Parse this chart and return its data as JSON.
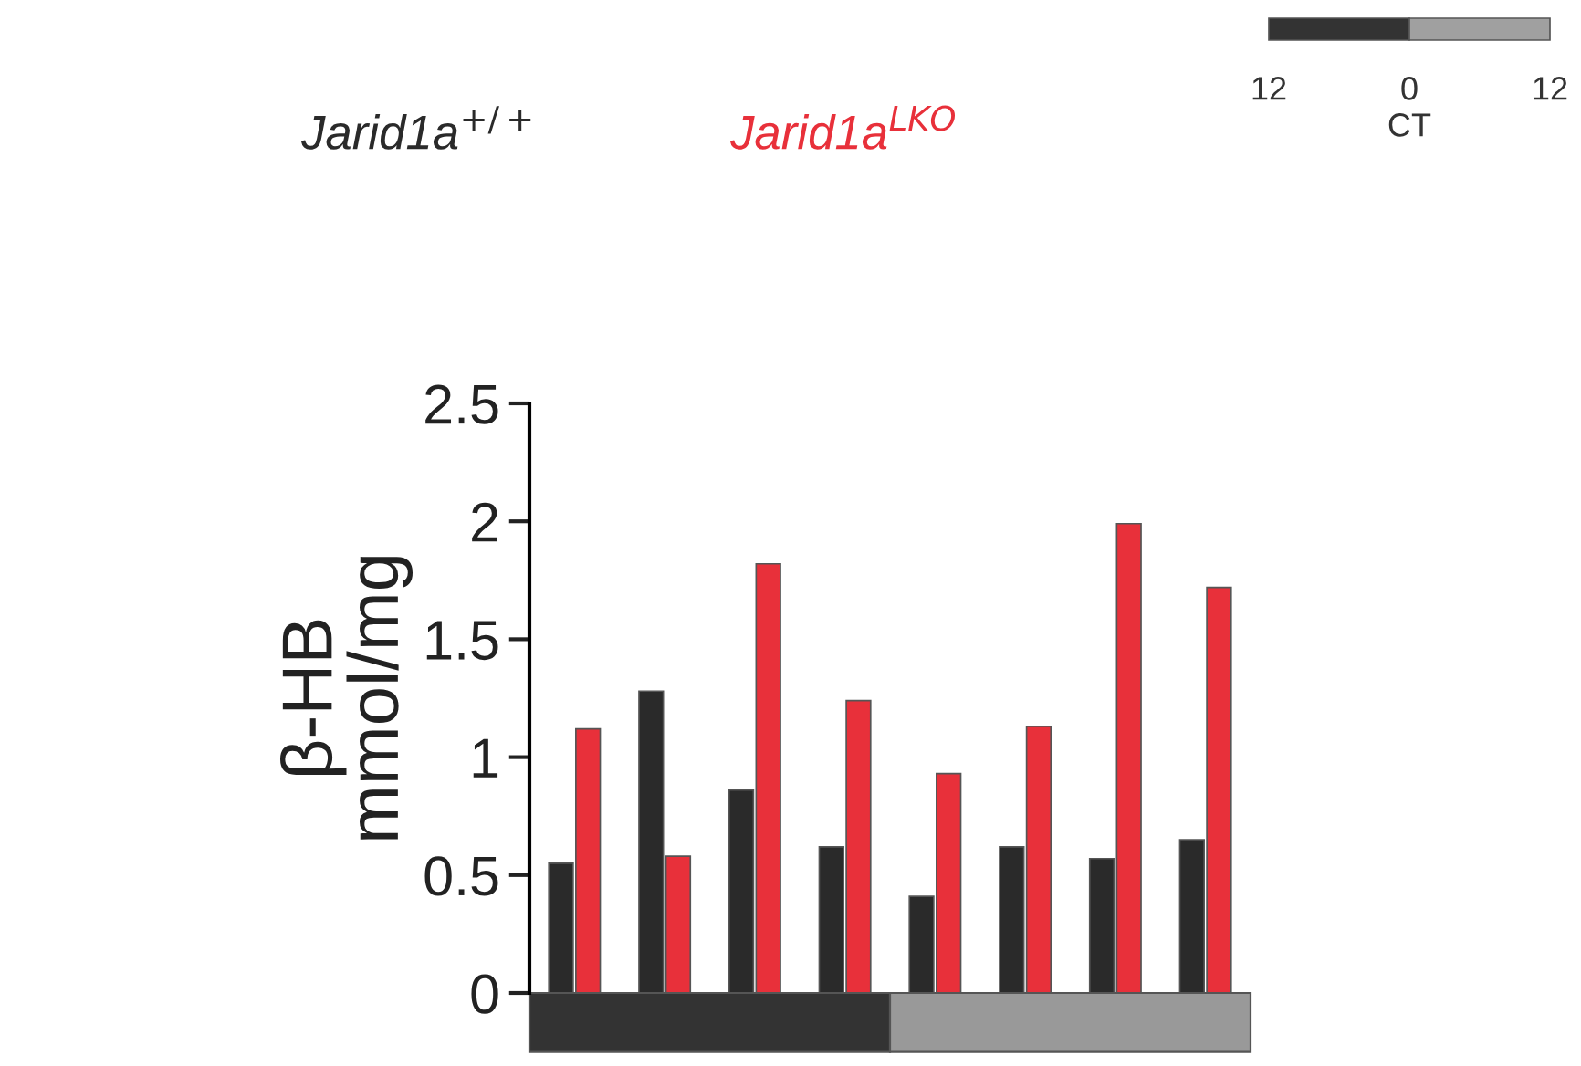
{
  "chart_data": {
    "type": "bar",
    "ylabel": "β-HB\nmmol/mg",
    "categories": [
      null,
      null,
      null,
      null,
      null,
      null,
      null,
      null
    ],
    "series": [
      {
        "name": "Jarid1a$^{+/+}$",
        "color": "#2a2a2a",
        "values": [
          0.55,
          1.28,
          0.86,
          0.62,
          0.41,
          0.62,
          0.57,
          0.65
        ]
      },
      {
        "name": "Jarid1a$^{LKO}$",
        "color": "#e8303a",
        "values": [
          1.12,
          0.58,
          1.82,
          1.24,
          0.93,
          1.13,
          1.99,
          1.72
        ]
      }
    ],
    "ylim": [
      0,
      2.5
    ],
    "yticks": [
      0,
      0.5,
      1,
      1.5,
      2,
      2.5
    ],
    "grid": false,
    "legend": "top",
    "annotations": [
      "12",
      "0",
      "12",
      "CT"
    ]
  }
}
